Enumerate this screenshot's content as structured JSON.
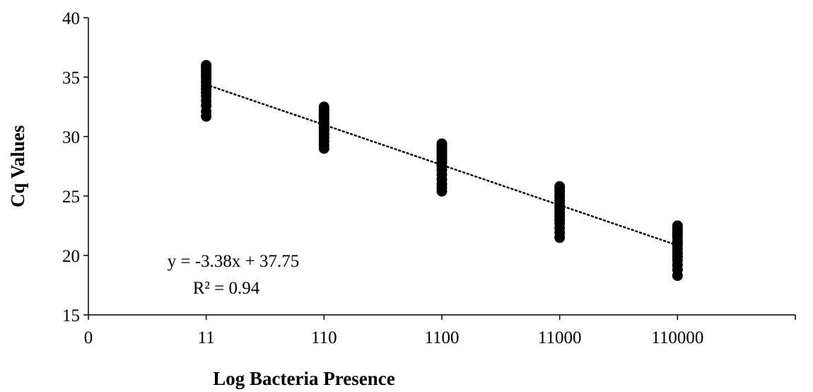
{
  "chart_data": {
    "type": "scatter",
    "title": "",
    "xlabel": "Log Bacteria Presence",
    "ylabel": "Cq Values",
    "xlim": [
      0,
      6
    ],
    "ylim": [
      15,
      40
    ],
    "x_ticks": [
      {
        "pos": 0,
        "label": "0"
      },
      {
        "pos": 1,
        "label": "11"
      },
      {
        "pos": 2,
        "label": "110"
      },
      {
        "pos": 3,
        "label": "1100"
      },
      {
        "pos": 4,
        "label": "11000"
      },
      {
        "pos": 5,
        "label": "110000"
      }
    ],
    "y_ticks": [
      15,
      20,
      25,
      30,
      35,
      40
    ],
    "grid": false,
    "series": [
      {
        "x": [
          1,
          1,
          1,
          1,
          1,
          1,
          1,
          1,
          1,
          1,
          1,
          1,
          1,
          1,
          1,
          1,
          2,
          2,
          2,
          2,
          2,
          2,
          2,
          2,
          2,
          2,
          2,
          2,
          2,
          2,
          2,
          2,
          3,
          3,
          3,
          3,
          3,
          3,
          3,
          3,
          3,
          3,
          3,
          3,
          3,
          3,
          3,
          3,
          4,
          4,
          4,
          4,
          4,
          4,
          4,
          4,
          4,
          4,
          4,
          4,
          4,
          4,
          4,
          4,
          5,
          5,
          5,
          5,
          5,
          5,
          5,
          5,
          5,
          5,
          5,
          5,
          5,
          5,
          5,
          5
        ],
        "y": [
          31.7,
          32.1,
          32.6,
          33.0,
          33.4,
          33.7,
          34.0,
          34.3,
          34.6,
          34.9,
          35.1,
          35.3,
          35.5,
          35.7,
          35.9,
          36.0,
          29.0,
          29.3,
          29.6,
          29.9,
          30.2,
          30.5,
          30.7,
          30.9,
          31.1,
          31.3,
          31.5,
          31.7,
          31.9,
          32.1,
          32.3,
          32.5,
          25.4,
          25.7,
          26.0,
          26.4,
          26.8,
          27.2,
          27.5,
          27.8,
          28.0,
          28.2,
          28.4,
          28.6,
          28.8,
          29.0,
          29.2,
          29.4,
          21.5,
          21.9,
          22.3,
          22.7,
          23.0,
          23.3,
          23.6,
          23.9,
          24.1,
          24.3,
          24.6,
          24.9,
          25.1,
          25.4,
          25.6,
          25.8,
          18.3,
          18.8,
          19.2,
          19.6,
          19.9,
          20.2,
          20.5,
          20.8,
          21.0,
          21.2,
          21.5,
          21.7,
          21.9,
          22.1,
          22.3,
          22.5
        ]
      }
    ],
    "trendline": {
      "style": "dotted",
      "slope": -3.38,
      "intercept": 37.75,
      "x_range": [
        1,
        5
      ],
      "equation_text": "y = -3.38x + 37.75",
      "r2_text": "R² = 0.94"
    }
  }
}
